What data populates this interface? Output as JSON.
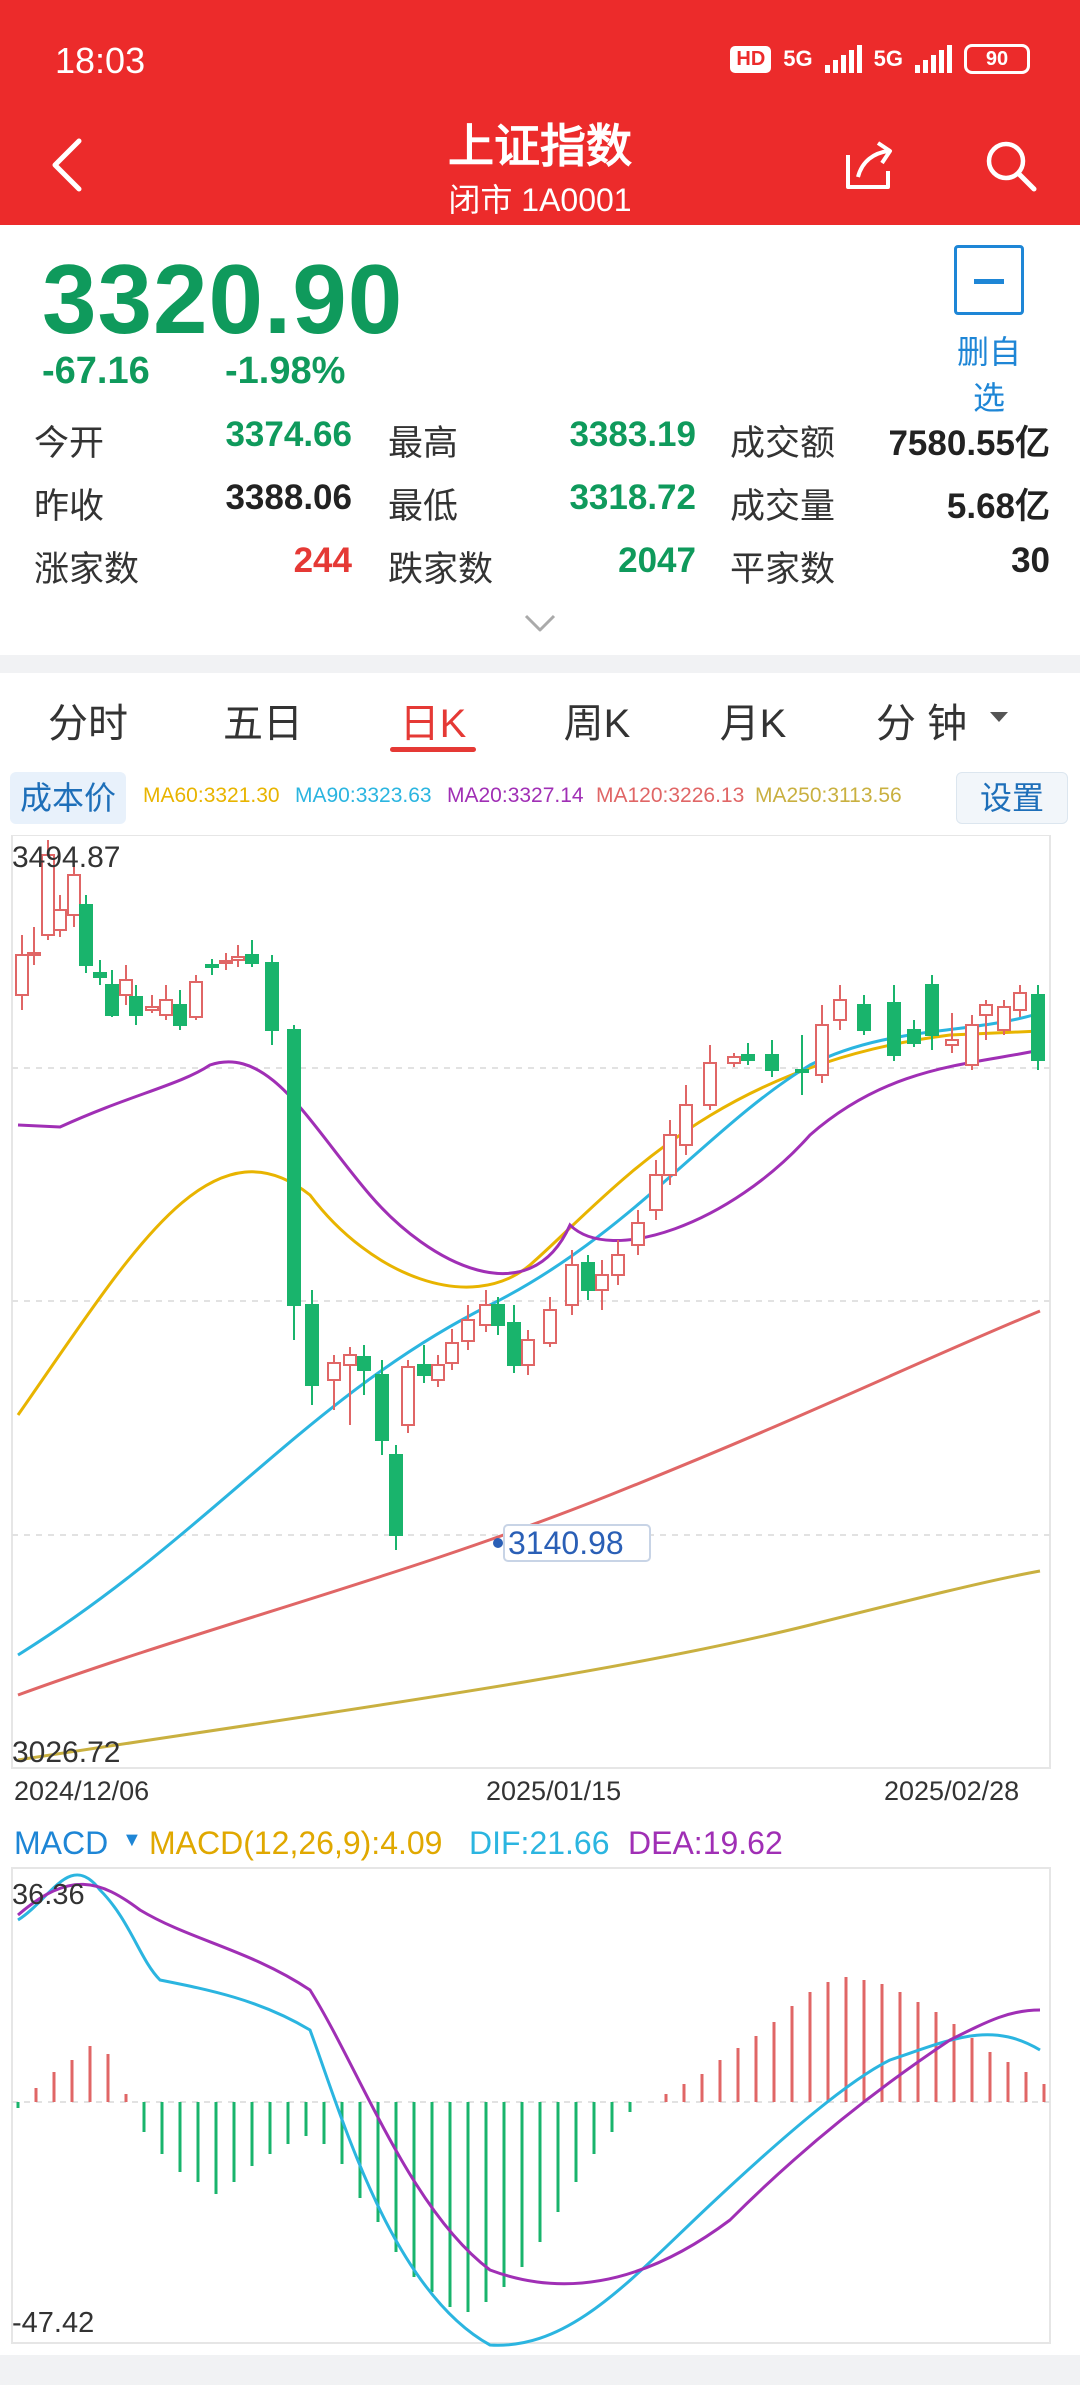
{
  "status": {
    "time": "18:03",
    "hd": "HD",
    "net1": "5G",
    "net2": "5G",
    "battery": "90"
  },
  "header": {
    "title": "上证指数",
    "subtitle": "闭市 1A0001"
  },
  "quote": {
    "price": "3320.90",
    "change_abs": "-67.16",
    "change_pct": "-1.98%",
    "remove_fav_label": "删自选",
    "stats": [
      [
        {
          "label": "今开",
          "value": "3374.66",
          "color": "green"
        },
        {
          "label": "最高",
          "value": "3383.19",
          "color": "green"
        },
        {
          "label": "成交额",
          "value": "7580.55亿",
          "color": "dark"
        }
      ],
      [
        {
          "label": "昨收",
          "value": "3388.06",
          "color": "dark"
        },
        {
          "label": "最低",
          "value": "3318.72",
          "color": "green"
        },
        {
          "label": "成交量",
          "value": "5.68亿",
          "color": "dark"
        }
      ],
      [
        {
          "label": "涨家数",
          "value": "244",
          "color": "red"
        },
        {
          "label": "跌家数",
          "value": "2047",
          "color": "green"
        },
        {
          "label": "平家数",
          "value": "30",
          "color": "dark"
        }
      ]
    ]
  },
  "tabs": [
    {
      "label": "分时",
      "active": false
    },
    {
      "label": "五日",
      "active": false
    },
    {
      "label": "日K",
      "active": true
    },
    {
      "label": "周K",
      "active": false
    },
    {
      "label": "月K",
      "active": false
    },
    {
      "label": "分 钟",
      "active": false
    }
  ],
  "ma_row": {
    "cost_label": "成本价",
    "settings_label": "设置",
    "legends": [
      {
        "text": "MA60:3321.30",
        "color": "#e8b400"
      },
      {
        "text": "MA90:3323.63",
        "color": "#2bb5e0"
      },
      {
        "text": "MA20:3327.14",
        "color": "#a02fb5"
      },
      {
        "text": "MA120:3226.13",
        "color": "#e06666"
      },
      {
        "text": "MA250:3113.56",
        "color": "#c9b040"
      }
    ]
  },
  "kline": {
    "y_max_label": "3494.87",
    "y_min_label": "3026.72",
    "low_marker": "3140.98",
    "x_labels": [
      "2024/12/06",
      "2025/01/15",
      "2025/02/28"
    ],
    "up_color": "#e06666",
    "down_color": "#19b46c"
  },
  "macd": {
    "label": "MACD",
    "macd_text": "MACD(12,26,9):4.09",
    "dif_text": "DIF:21.66",
    "dea_text": "DEA:19.62",
    "y_max_label": "36.36",
    "y_min_label": "-47.42"
  }
}
